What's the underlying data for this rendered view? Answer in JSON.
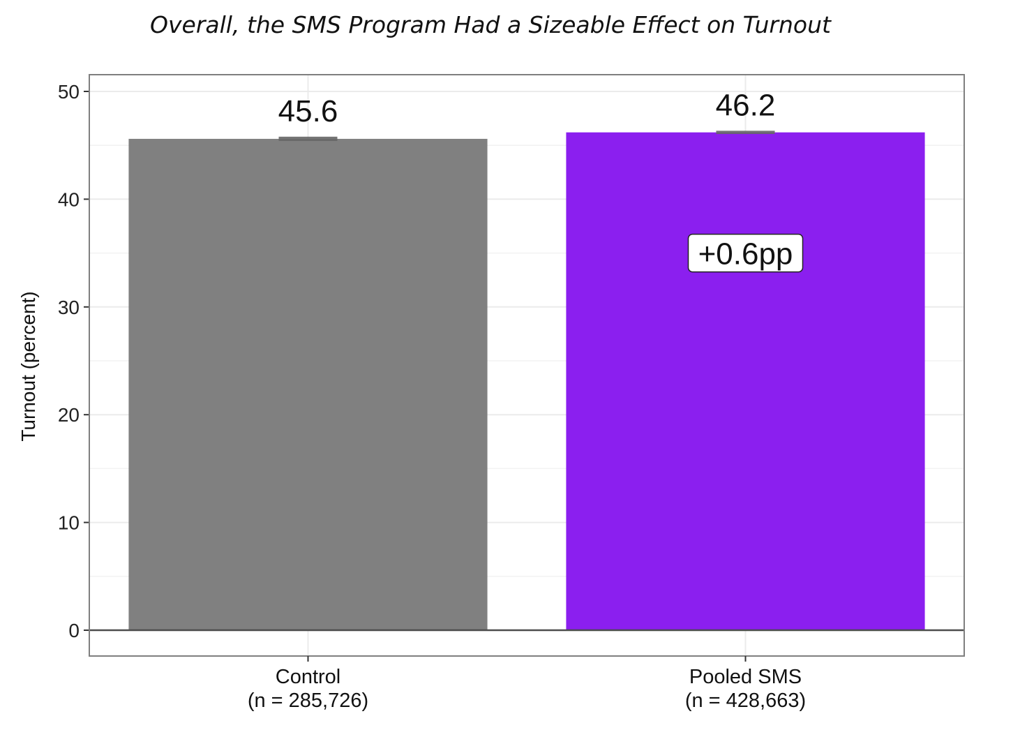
{
  "chart_data": {
    "type": "bar",
    "title": "Overall, the SMS Program Had a Sizeable Effect on Turnout",
    "xlabel": "",
    "ylabel": "Turnout (percent)",
    "ylim": [
      0,
      50
    ],
    "yticks": [
      0,
      10,
      20,
      30,
      40,
      50
    ],
    "grid": true,
    "categories": [
      "Control",
      "Pooled SMS"
    ],
    "category_sublabels": [
      "(n = 285,726)",
      "(n = 428,663)"
    ],
    "values": [
      45.6,
      46.2
    ],
    "value_labels": [
      "45.6",
      "46.2"
    ],
    "error_bars": [
      [
        45.4,
        45.8
      ],
      [
        46.05,
        46.35
      ]
    ],
    "colors": [
      "#808080",
      "#8b1fef"
    ],
    "annotation": {
      "text": "+0.6pp",
      "category": "Pooled SMS",
      "y": 35
    }
  }
}
